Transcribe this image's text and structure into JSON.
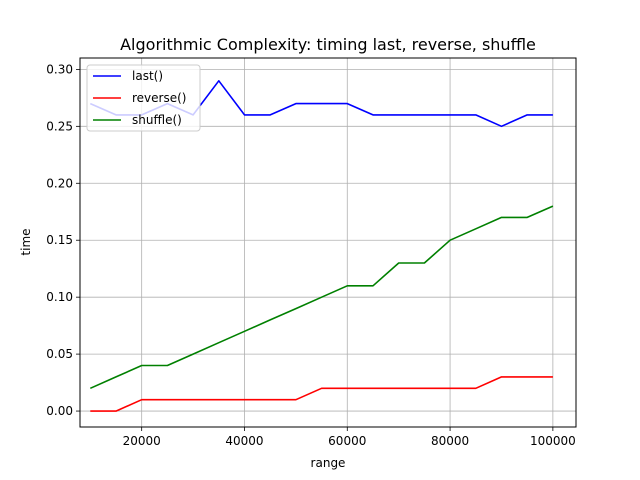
{
  "chart_data": {
    "type": "line",
    "title": "Algorithmic Complexity: timing last, reverse, shuffle",
    "xlabel": "range",
    "ylabel": "time",
    "xlim": [
      8000,
      104500
    ],
    "ylim": [
      -0.014,
      0.31
    ],
    "xticks": [
      20000,
      40000,
      60000,
      80000,
      100000
    ],
    "yticks": [
      0.0,
      0.05,
      0.1,
      0.15,
      0.2,
      0.25,
      0.3
    ],
    "xtick_labels": [
      "20000",
      "40000",
      "60000",
      "80000",
      "100000"
    ],
    "ytick_labels": [
      "0.00",
      "0.05",
      "0.10",
      "0.15",
      "0.20",
      "0.25",
      "0.30"
    ],
    "grid": true,
    "legend_position": "top-left",
    "x": [
      10000,
      15000,
      20000,
      25000,
      30000,
      35000,
      40000,
      45000,
      50000,
      55000,
      60000,
      65000,
      70000,
      75000,
      80000,
      85000,
      90000,
      95000,
      100000
    ],
    "series": [
      {
        "name": "last()",
        "color": "#0000ff",
        "values": [
          0.27,
          0.26,
          0.26,
          0.27,
          0.26,
          0.29,
          0.26,
          0.26,
          0.27,
          0.27,
          0.27,
          0.26,
          0.26,
          0.26,
          0.26,
          0.26,
          0.25,
          0.26,
          0.26
        ]
      },
      {
        "name": "reverse()",
        "color": "#ff0000",
        "values": [
          0.0,
          0.0,
          0.01,
          0.01,
          0.01,
          0.01,
          0.01,
          0.01,
          0.01,
          0.02,
          0.02,
          0.02,
          0.02,
          0.02,
          0.02,
          0.02,
          0.03,
          0.03,
          0.03
        ]
      },
      {
        "name": "shuffle()",
        "color": "#008000",
        "values": [
          0.02,
          0.03,
          0.04,
          0.04,
          0.05,
          0.06,
          0.07,
          0.08,
          0.09,
          0.1,
          0.11,
          0.11,
          0.13,
          0.13,
          0.15,
          0.16,
          0.17,
          0.17,
          0.18
        ]
      }
    ]
  }
}
